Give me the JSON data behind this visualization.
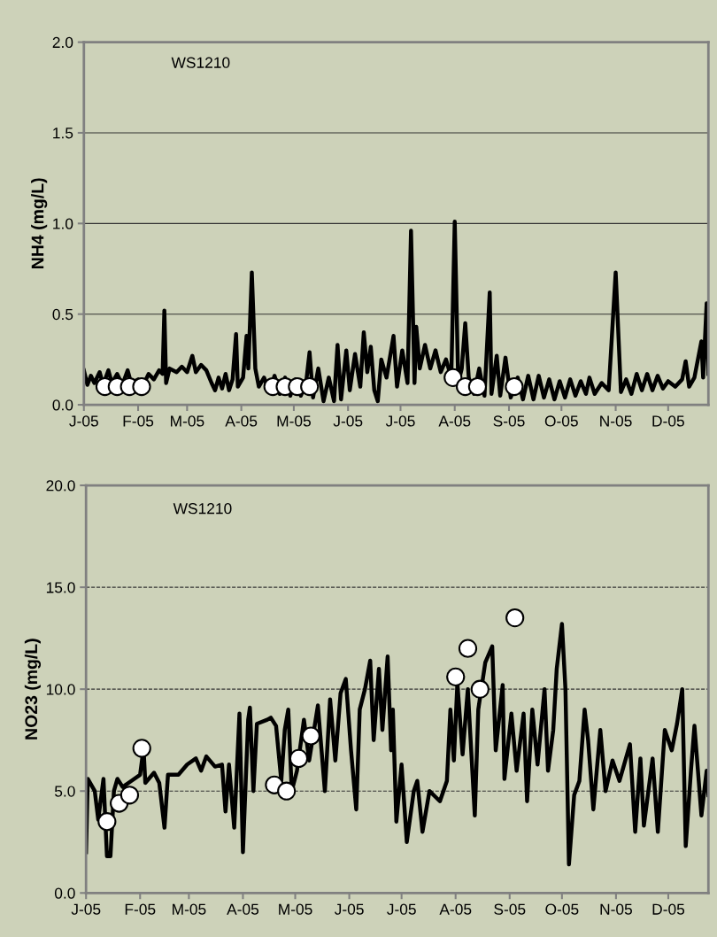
{
  "chart_data": [
    {
      "type": "line",
      "ylabel": "NH4 (mg/L)",
      "annotations": [
        "WS1210"
      ],
      "grid": "y",
      "xlim": [
        "2005-01-01",
        "2005-12-24"
      ],
      "ylim": [
        0,
        2.0
      ],
      "yticks": [
        {
          "value": 0,
          "label": "0.0"
        },
        {
          "value": 0.5,
          "label": "0.5"
        },
        {
          "value": 1.0,
          "label": "1.0"
        },
        {
          "value": 1.5,
          "label": "1.5"
        },
        {
          "value": 2.0,
          "label": "2.0"
        }
      ],
      "xticks": [
        {
          "value": "2005-01-01",
          "label": "J-05"
        },
        {
          "value": "2005-02-01",
          "label": "F-05"
        },
        {
          "value": "2005-03-01",
          "label": "M-05"
        },
        {
          "value": "2005-04-01",
          "label": "A-05"
        },
        {
          "value": "2005-05-01",
          "label": "M-05"
        },
        {
          "value": "2005-06-01",
          "label": "J-05"
        },
        {
          "value": "2005-07-01",
          "label": "J-05"
        },
        {
          "value": "2005-08-01",
          "label": "A-05"
        },
        {
          "value": "2005-09-01",
          "label": "S-05"
        },
        {
          "value": "2005-10-01",
          "label": "O-05"
        },
        {
          "value": "2005-11-01",
          "label": "N-05"
        },
        {
          "value": "2005-12-01",
          "label": "D-05"
        }
      ],
      "series": [
        {
          "type": "line",
          "color": "#000000",
          "marker": "none",
          "line_style": "solid",
          "x": [
            "2005-01-01",
            "2005-01-03",
            "2005-01-05",
            "2005-01-07",
            "2005-01-10",
            "2005-01-12",
            "2005-01-15",
            "2005-01-17",
            "2005-01-20",
            "2005-01-23",
            "2005-01-26",
            "2005-01-28",
            "2005-02-01",
            "2005-02-04",
            "2005-02-07",
            "2005-02-10",
            "2005-02-13",
            "2005-02-15",
            "2005-02-16",
            "2005-02-17",
            "2005-02-19",
            "2005-02-23",
            "2005-02-26",
            "2005-03-01",
            "2005-03-04",
            "2005-03-06",
            "2005-03-09",
            "2005-03-12",
            "2005-03-15",
            "2005-03-17",
            "2005-03-19",
            "2005-03-21",
            "2005-03-23",
            "2005-03-25",
            "2005-03-27",
            "2005-03-29",
            "2005-03-30",
            "2005-04-02",
            "2005-04-04",
            "2005-04-05",
            "2005-04-07",
            "2005-04-09",
            "2005-04-11",
            "2005-04-14",
            "2005-04-17",
            "2005-04-20",
            "2005-04-23",
            "2005-04-26",
            "2005-04-29",
            "2005-05-02",
            "2005-05-05",
            "2005-05-08",
            "2005-05-10",
            "2005-05-12",
            "2005-05-15",
            "2005-05-18",
            "2005-05-21",
            "2005-05-24",
            "2005-05-26",
            "2005-05-28",
            "2005-05-31",
            "2005-06-02",
            "2005-06-05",
            "2005-06-08",
            "2005-06-10",
            "2005-06-12",
            "2005-06-14",
            "2005-06-16",
            "2005-06-18",
            "2005-06-20",
            "2005-06-23",
            "2005-06-27",
            "2005-06-29",
            "2005-07-02",
            "2005-07-05",
            "2005-07-07",
            "2005-07-09",
            "2005-07-10",
            "2005-07-12",
            "2005-07-15",
            "2005-07-18",
            "2005-07-21",
            "2005-07-24",
            "2005-07-27",
            "2005-07-30",
            "2005-08-01",
            "2005-08-03",
            "2005-08-05",
            "2005-08-07",
            "2005-08-09",
            "2005-08-12",
            "2005-08-15",
            "2005-08-18",
            "2005-08-21",
            "2005-08-22",
            "2005-08-25",
            "2005-08-27",
            "2005-08-30",
            "2005-09-02",
            "2005-09-06",
            "2005-09-09",
            "2005-09-12",
            "2005-09-15",
            "2005-09-18",
            "2005-09-21",
            "2005-09-24",
            "2005-09-27",
            "2005-09-30",
            "2005-10-03",
            "2005-10-06",
            "2005-10-09",
            "2005-10-12",
            "2005-10-15",
            "2005-10-17",
            "2005-10-20",
            "2005-10-24",
            "2005-10-28",
            "2005-11-01",
            "2005-11-04",
            "2005-11-07",
            "2005-11-10",
            "2005-11-13",
            "2005-11-16",
            "2005-11-19",
            "2005-11-22",
            "2005-11-25",
            "2005-11-28",
            "2005-12-01",
            "2005-12-05",
            "2005-12-09",
            "2005-12-11",
            "2005-12-13",
            "2005-12-16",
            "2005-12-20",
            "2005-12-21",
            "2005-12-23",
            "2005-12-24"
          ],
          "values": [
            0.19,
            0.11,
            0.16,
            0.12,
            0.18,
            0.11,
            0.19,
            0.12,
            0.17,
            0.11,
            0.19,
            0.12,
            0.14,
            0.11,
            0.17,
            0.14,
            0.19,
            0.17,
            0.52,
            0.12,
            0.2,
            0.18,
            0.21,
            0.18,
            0.27,
            0.18,
            0.22,
            0.19,
            0.12,
            0.08,
            0.15,
            0.09,
            0.17,
            0.08,
            0.14,
            0.39,
            0.1,
            0.15,
            0.38,
            0.2,
            0.73,
            0.2,
            0.1,
            0.15,
            0.07,
            0.16,
            0.06,
            0.15,
            0.05,
            0.14,
            0.05,
            0.12,
            0.29,
            0.04,
            0.2,
            0.02,
            0.15,
            0.02,
            0.33,
            0.03,
            0.3,
            0.08,
            0.28,
            0.1,
            0.4,
            0.18,
            0.32,
            0.08,
            0.02,
            0.25,
            0.15,
            0.38,
            0.1,
            0.3,
            0.12,
            0.96,
            0.12,
            0.43,
            0.2,
            0.33,
            0.2,
            0.3,
            0.18,
            0.25,
            0.15,
            1.01,
            0.12,
            0.2,
            0.45,
            0.15,
            0.06,
            0.2,
            0.05,
            0.62,
            0.06,
            0.27,
            0.05,
            0.26,
            0.04,
            0.15,
            0.03,
            0.16,
            0.03,
            0.16,
            0.04,
            0.14,
            0.03,
            0.13,
            0.04,
            0.14,
            0.05,
            0.13,
            0.06,
            0.15,
            0.06,
            0.12,
            0.08,
            0.73,
            0.07,
            0.14,
            0.06,
            0.17,
            0.08,
            0.17,
            0.08,
            0.16,
            0.09,
            0.13,
            0.1,
            0.14,
            0.24,
            0.1,
            0.15,
            0.35,
            0.15,
            0.56,
            0.17
          ]
        },
        {
          "type": "scatter",
          "color": "#ffffff",
          "marker": "circle",
          "x": [
            "2005-01-13",
            "2005-01-20",
            "2005-01-27",
            "2005-02-03",
            "2005-04-19",
            "2005-04-26",
            "2005-05-03",
            "2005-05-10",
            "2005-07-31",
            "2005-08-07",
            "2005-08-14",
            "2005-09-04"
          ],
          "values": [
            0.1,
            0.1,
            0.1,
            0.1,
            0.1,
            0.1,
            0.1,
            0.1,
            0.15,
            0.1,
            0.1,
            0.1
          ]
        }
      ]
    },
    {
      "type": "line",
      "ylabel": "NO23 (mg/L)",
      "annotations": [
        "WS1210"
      ],
      "grid": "y",
      "xlim": [
        "2005-01-01",
        "2005-12-24"
      ],
      "ylim": [
        0,
        20.0
      ],
      "yticks": [
        {
          "value": 0,
          "label": "0.0"
        },
        {
          "value": 5,
          "label": "5.0"
        },
        {
          "value": 10,
          "label": "10.0"
        },
        {
          "value": 15,
          "label": "15.0"
        },
        {
          "value": 20,
          "label": "20.0"
        }
      ],
      "xticks": [
        {
          "value": "2005-01-01",
          "label": "J-05"
        },
        {
          "value": "2005-02-01",
          "label": "F-05"
        },
        {
          "value": "2005-03-01",
          "label": "M-05"
        },
        {
          "value": "2005-04-01",
          "label": "A-05"
        },
        {
          "value": "2005-05-01",
          "label": "M-05"
        },
        {
          "value": "2005-06-01",
          "label": "J-05"
        },
        {
          "value": "2005-07-01",
          "label": "J-05"
        },
        {
          "value": "2005-08-01",
          "label": "A-05"
        },
        {
          "value": "2005-09-01",
          "label": "S-05"
        },
        {
          "value": "2005-10-01",
          "label": "O-05"
        },
        {
          "value": "2005-11-01",
          "label": "N-05"
        },
        {
          "value": "2005-12-01",
          "label": "D-05"
        }
      ],
      "series": [
        {
          "type": "line",
          "color": "#000000",
          "marker": "none",
          "line_style": "solid",
          "x": [
            "2005-01-01",
            "2005-01-02",
            "2005-01-06",
            "2005-01-08",
            "2005-01-11",
            "2005-01-13",
            "2005-01-15",
            "2005-01-17",
            "2005-01-19",
            "2005-01-22",
            "2005-01-27",
            "2005-02-01",
            "2005-02-03",
            "2005-02-04",
            "2005-02-09",
            "2005-02-12",
            "2005-02-15",
            "2005-02-17",
            "2005-02-23",
            "2005-02-28",
            "2005-03-05",
            "2005-03-08",
            "2005-03-11",
            "2005-03-16",
            "2005-03-20",
            "2005-03-22",
            "2005-03-24",
            "2005-03-27",
            "2005-03-30",
            "2005-04-01",
            "2005-04-04",
            "2005-04-05",
            "2005-04-07",
            "2005-04-09",
            "2005-04-15",
            "2005-04-17",
            "2005-04-20",
            "2005-04-23",
            "2005-04-25",
            "2005-04-27",
            "2005-04-29",
            "2005-05-02",
            "2005-05-06",
            "2005-05-09",
            "2005-05-14",
            "2005-05-18",
            "2005-05-21",
            "2005-05-24",
            "2005-05-27",
            "2005-05-30",
            "2005-06-02",
            "2005-06-05",
            "2005-06-07",
            "2005-06-10",
            "2005-06-13",
            "2005-06-15",
            "2005-06-18",
            "2005-06-20",
            "2005-06-23",
            "2005-06-25",
            "2005-06-26",
            "2005-06-28",
            "2005-07-01",
            "2005-07-04",
            "2005-07-08",
            "2005-07-10",
            "2005-07-13",
            "2005-07-17",
            "2005-07-23",
            "2005-07-27",
            "2005-07-29",
            "2005-07-31",
            "2005-08-02",
            "2005-08-05",
            "2005-08-08",
            "2005-08-12",
            "2005-08-14",
            "2005-08-18",
            "2005-08-22",
            "2005-08-24",
            "2005-08-28",
            "2005-08-29",
            "2005-09-02",
            "2005-09-05",
            "2005-09-09",
            "2005-09-11",
            "2005-09-14",
            "2005-09-17",
            "2005-09-21",
            "2005-09-23",
            "2005-09-26",
            "2005-09-28",
            "2005-10-01",
            "2005-10-03",
            "2005-10-05",
            "2005-10-08",
            "2005-10-11",
            "2005-10-14",
            "2005-10-16",
            "2005-10-19",
            "2005-10-23",
            "2005-10-26",
            "2005-10-30",
            "2005-11-03",
            "2005-11-09",
            "2005-11-12",
            "2005-11-15",
            "2005-11-17",
            "2005-11-22",
            "2005-11-25",
            "2005-11-29",
            "2005-12-03",
            "2005-12-06",
            "2005-12-09",
            "2005-12-11",
            "2005-12-14",
            "2005-12-16",
            "2005-12-20",
            "2005-12-23",
            "2005-12-24"
          ],
          "values": [
            2.0,
            5.6,
            5.0,
            3.6,
            5.6,
            1.8,
            1.8,
            5.0,
            5.6,
            5.2,
            5.5,
            5.8,
            7.1,
            5.4,
            5.9,
            5.4,
            3.2,
            5.8,
            5.8,
            6.3,
            6.6,
            6.0,
            6.7,
            6.2,
            6.3,
            4.0,
            6.3,
            3.2,
            8.8,
            2.0,
            8.5,
            9.1,
            5.0,
            8.3,
            8.5,
            8.6,
            8.2,
            5.5,
            8.0,
            9.0,
            5.0,
            6.0,
            8.5,
            6.5,
            9.2,
            5.0,
            9.5,
            6.5,
            9.8,
            10.5,
            7.0,
            4.1,
            9.0,
            10.0,
            11.4,
            7.5,
            11.0,
            8.0,
            11.6,
            7.0,
            9.0,
            3.5,
            6.3,
            2.5,
            5.0,
            5.5,
            3.0,
            5.0,
            4.5,
            5.5,
            9.0,
            6.5,
            10.3,
            6.8,
            10.0,
            3.8,
            9.0,
            11.3,
            12.1,
            7.0,
            10.2,
            5.6,
            8.8,
            6.0,
            8.8,
            4.5,
            9.0,
            6.3,
            10.0,
            6.0,
            8.0,
            11.0,
            13.2,
            10.0,
            1.4,
            4.8,
            5.5,
            9.0,
            7.5,
            4.1,
            8.0,
            5.0,
            6.5,
            5.5,
            7.3,
            3.0,
            6.6,
            3.3,
            6.6,
            3.0,
            8.0,
            7.0,
            8.3,
            10.0,
            2.3,
            6.0,
            8.2,
            3.8,
            6.0,
            4.8
          ]
        },
        {
          "type": "scatter",
          "color": "#ffffff",
          "marker": "circle",
          "x": [
            "2005-01-13",
            "2005-01-20",
            "2005-01-26",
            "2005-02-02",
            "2005-04-19",
            "2005-04-26",
            "2005-05-03",
            "2005-05-10",
            "2005-08-01",
            "2005-08-08",
            "2005-08-15",
            "2005-09-04"
          ],
          "values": [
            3.5,
            4.4,
            4.8,
            7.1,
            5.3,
            5.0,
            6.6,
            7.7,
            10.6,
            12.0,
            10.0,
            13.5
          ]
        }
      ]
    }
  ]
}
